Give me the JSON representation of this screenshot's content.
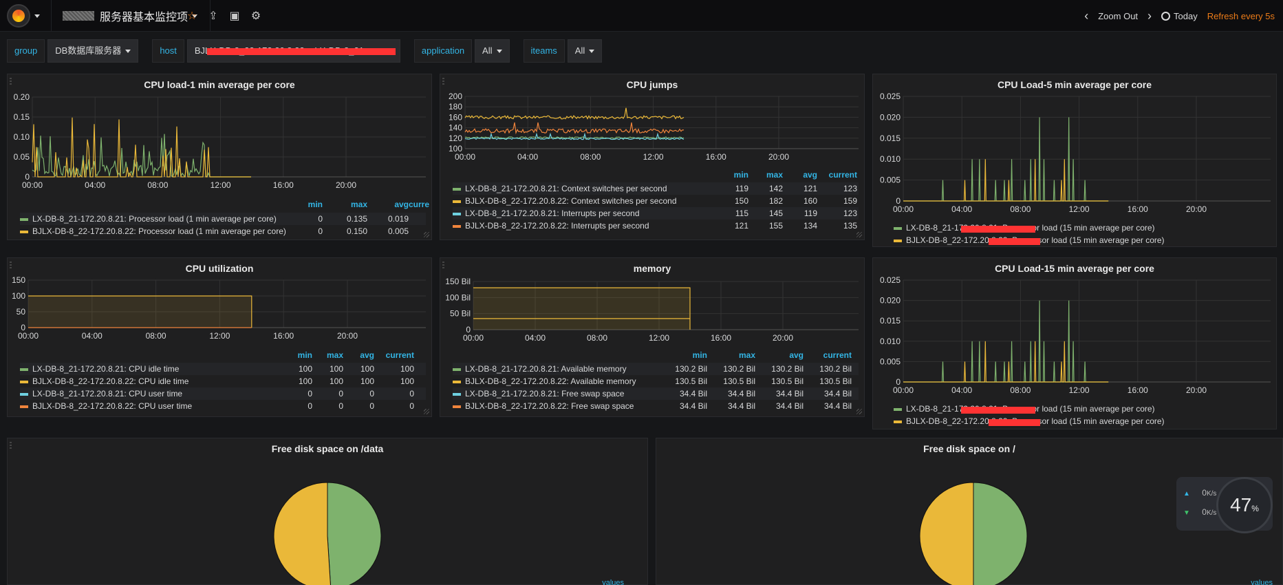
{
  "nav": {
    "title": "服务器基本监控项",
    "zoom_out": "Zoom Out",
    "today": "Today",
    "refresh": "Refresh every 5s"
  },
  "variables": [
    {
      "label": "group",
      "value": "DB数据库服务器",
      "dropdown": true
    },
    {
      "label": "host",
      "value": "BJLX-DB-8_22-172.20.8.22 + LX-DB-8_21-172.20.8.21",
      "dropdown": false
    },
    {
      "label": "application",
      "value": "All",
      "dropdown": true
    },
    {
      "label": "iteams",
      "value": "All",
      "dropdown": true
    }
  ],
  "colors": {
    "green": "#7eb26d",
    "yellow": "#eab839",
    "cyan": "#6ed0e0",
    "orange": "#ef843c",
    "accent": "#33b5e5",
    "refresh": "#eb7b18"
  },
  "panels": {
    "p1": {
      "title": "CPU load-1 min average per core",
      "yticks": [
        "0.20",
        "0.15",
        "0.10",
        "0.05",
        "0"
      ],
      "xticks": [
        "00:00",
        "04:00",
        "08:00",
        "12:00",
        "16:00",
        "20:00"
      ],
      "headers": [
        "min",
        "max",
        "avg",
        "curre"
      ],
      "rows": [
        {
          "name": "LX-DB-8_21-172.20.8.21: Processor load (1 min average per core)",
          "color": "green",
          "vals": [
            "0",
            "0.135",
            "0.019",
            ""
          ]
        },
        {
          "name": "BJLX-DB-8_22-172.20.8.22: Processor load (1 min average per core)",
          "color": "yellow",
          "vals": [
            "0",
            "0.150",
            "0.005",
            ""
          ]
        }
      ]
    },
    "p2": {
      "title": "CPU jumps",
      "yticks": [
        "200",
        "180",
        "160",
        "140",
        "120",
        "100"
      ],
      "xticks": [
        "00:00",
        "04:00",
        "08:00",
        "12:00",
        "16:00",
        "20:00"
      ],
      "headers": [
        "min",
        "max",
        "avg",
        "current"
      ],
      "rows": [
        {
          "name": "LX-DB-8_21-172.20.8.21: Context switches per second",
          "color": "green",
          "vals": [
            "119",
            "142",
            "121",
            "123"
          ]
        },
        {
          "name": "BJLX-DB-8_22-172.20.8.22: Context switches per second",
          "color": "yellow",
          "vals": [
            "150",
            "182",
            "160",
            "159"
          ]
        },
        {
          "name": "LX-DB-8_21-172.20.8.21: Interrupts per second",
          "color": "cyan",
          "vals": [
            "115",
            "145",
            "119",
            "123"
          ]
        },
        {
          "name": "BJLX-DB-8_22-172.20.8.22: Interrupts per second",
          "color": "orange",
          "vals": [
            "121",
            "155",
            "134",
            "135"
          ]
        }
      ]
    },
    "p3": {
      "title": "CPU Load-5 min average per core",
      "yticks": [
        "0.025",
        "0.020",
        "0.015",
        "0.010",
        "0.005",
        "0"
      ],
      "xticks": [
        "00:00",
        "04:00",
        "08:00",
        "12:00",
        "16:00",
        "20:00"
      ],
      "rows": [
        {
          "name": "LX-DB-8_21-172.20.8.21: Processor load (15 min average per core)",
          "color": "green"
        },
        {
          "name": "BJLX-DB-8_22-172.20.8.22: Processor load (15 min average per core)",
          "color": "yellow"
        }
      ]
    },
    "p4": {
      "title": "CPU utilization",
      "yticks": [
        "150",
        "100",
        "50",
        "0"
      ],
      "xticks": [
        "00:00",
        "04:00",
        "08:00",
        "12:00",
        "16:00",
        "20:00"
      ],
      "headers": [
        "min",
        "max",
        "avg",
        "current"
      ],
      "rows": [
        {
          "name": "LX-DB-8_21-172.20.8.21: CPU idle time",
          "color": "green",
          "vals": [
            "100",
            "100",
            "100",
            "100"
          ]
        },
        {
          "name": "BJLX-DB-8_22-172.20.8.22: CPU idle time",
          "color": "yellow",
          "vals": [
            "100",
            "100",
            "100",
            "100"
          ]
        },
        {
          "name": "LX-DB-8_21-172.20.8.21: CPU user time",
          "color": "cyan",
          "vals": [
            "0",
            "0",
            "0",
            "0"
          ]
        },
        {
          "name": "BJLX-DB-8_22-172.20.8.22: CPU user time",
          "color": "orange",
          "vals": [
            "0",
            "0",
            "0",
            "0"
          ]
        }
      ]
    },
    "p5": {
      "title": "memory",
      "yticks": [
        "150 Bil",
        "100 Bil",
        "50 Bil",
        "0"
      ],
      "xticks": [
        "00:00",
        "04:00",
        "08:00",
        "12:00",
        "16:00",
        "20:00"
      ],
      "headers": [
        "min",
        "max",
        "avg",
        "current"
      ],
      "rows": [
        {
          "name": "LX-DB-8_21-172.20.8.21: Available memory",
          "color": "green",
          "vals": [
            "130.2 Bil",
            "130.2 Bil",
            "130.2 Bil",
            "130.2 Bil"
          ]
        },
        {
          "name": "BJLX-DB-8_22-172.20.8.22: Available memory",
          "color": "yellow",
          "vals": [
            "130.5 Bil",
            "130.5 Bil",
            "130.5 Bil",
            "130.5 Bil"
          ]
        },
        {
          "name": "LX-DB-8_21-172.20.8.21: Free swap space",
          "color": "cyan",
          "vals": [
            "34.4 Bil",
            "34.4 Bil",
            "34.4 Bil",
            "34.4 Bil"
          ]
        },
        {
          "name": "BJLX-DB-8_22-172.20.8.22: Free swap space",
          "color": "orange",
          "vals": [
            "34.4 Bil",
            "34.4 Bil",
            "34.4 Bil",
            "34.4 Bil"
          ]
        }
      ]
    },
    "p6": {
      "title": "CPU Load-15 min average per core",
      "yticks": [
        "0.025",
        "0.020",
        "0.015",
        "0.010",
        "0.005",
        "0"
      ],
      "xticks": [
        "00:00",
        "04:00",
        "08:00",
        "12:00",
        "16:00",
        "20:00"
      ],
      "rows": [
        {
          "name": "LX-DB-8_21-172.20.8.21: Processor load (15 min average per core)",
          "color": "green"
        },
        {
          "name": "BJLX-DB-8_22-172.20.8.22: Processor load (15 min average per core)",
          "color": "yellow"
        }
      ]
    },
    "p7": {
      "title": "Free disk space on /data",
      "slices": [
        {
          "color": "green",
          "value": 49
        },
        {
          "color": "yellow",
          "value": 51
        }
      ],
      "legend_hint": "values"
    },
    "p8": {
      "title": "Free disk space on /",
      "slices": [
        {
          "color": "green",
          "value": 50
        },
        {
          "color": "yellow",
          "value": 50
        }
      ],
      "legend_hint": "values"
    }
  },
  "net_widget": {
    "up": "0",
    "down": "0",
    "unit": "K/s",
    "percent": "47",
    "percent_unit": "%"
  }
}
